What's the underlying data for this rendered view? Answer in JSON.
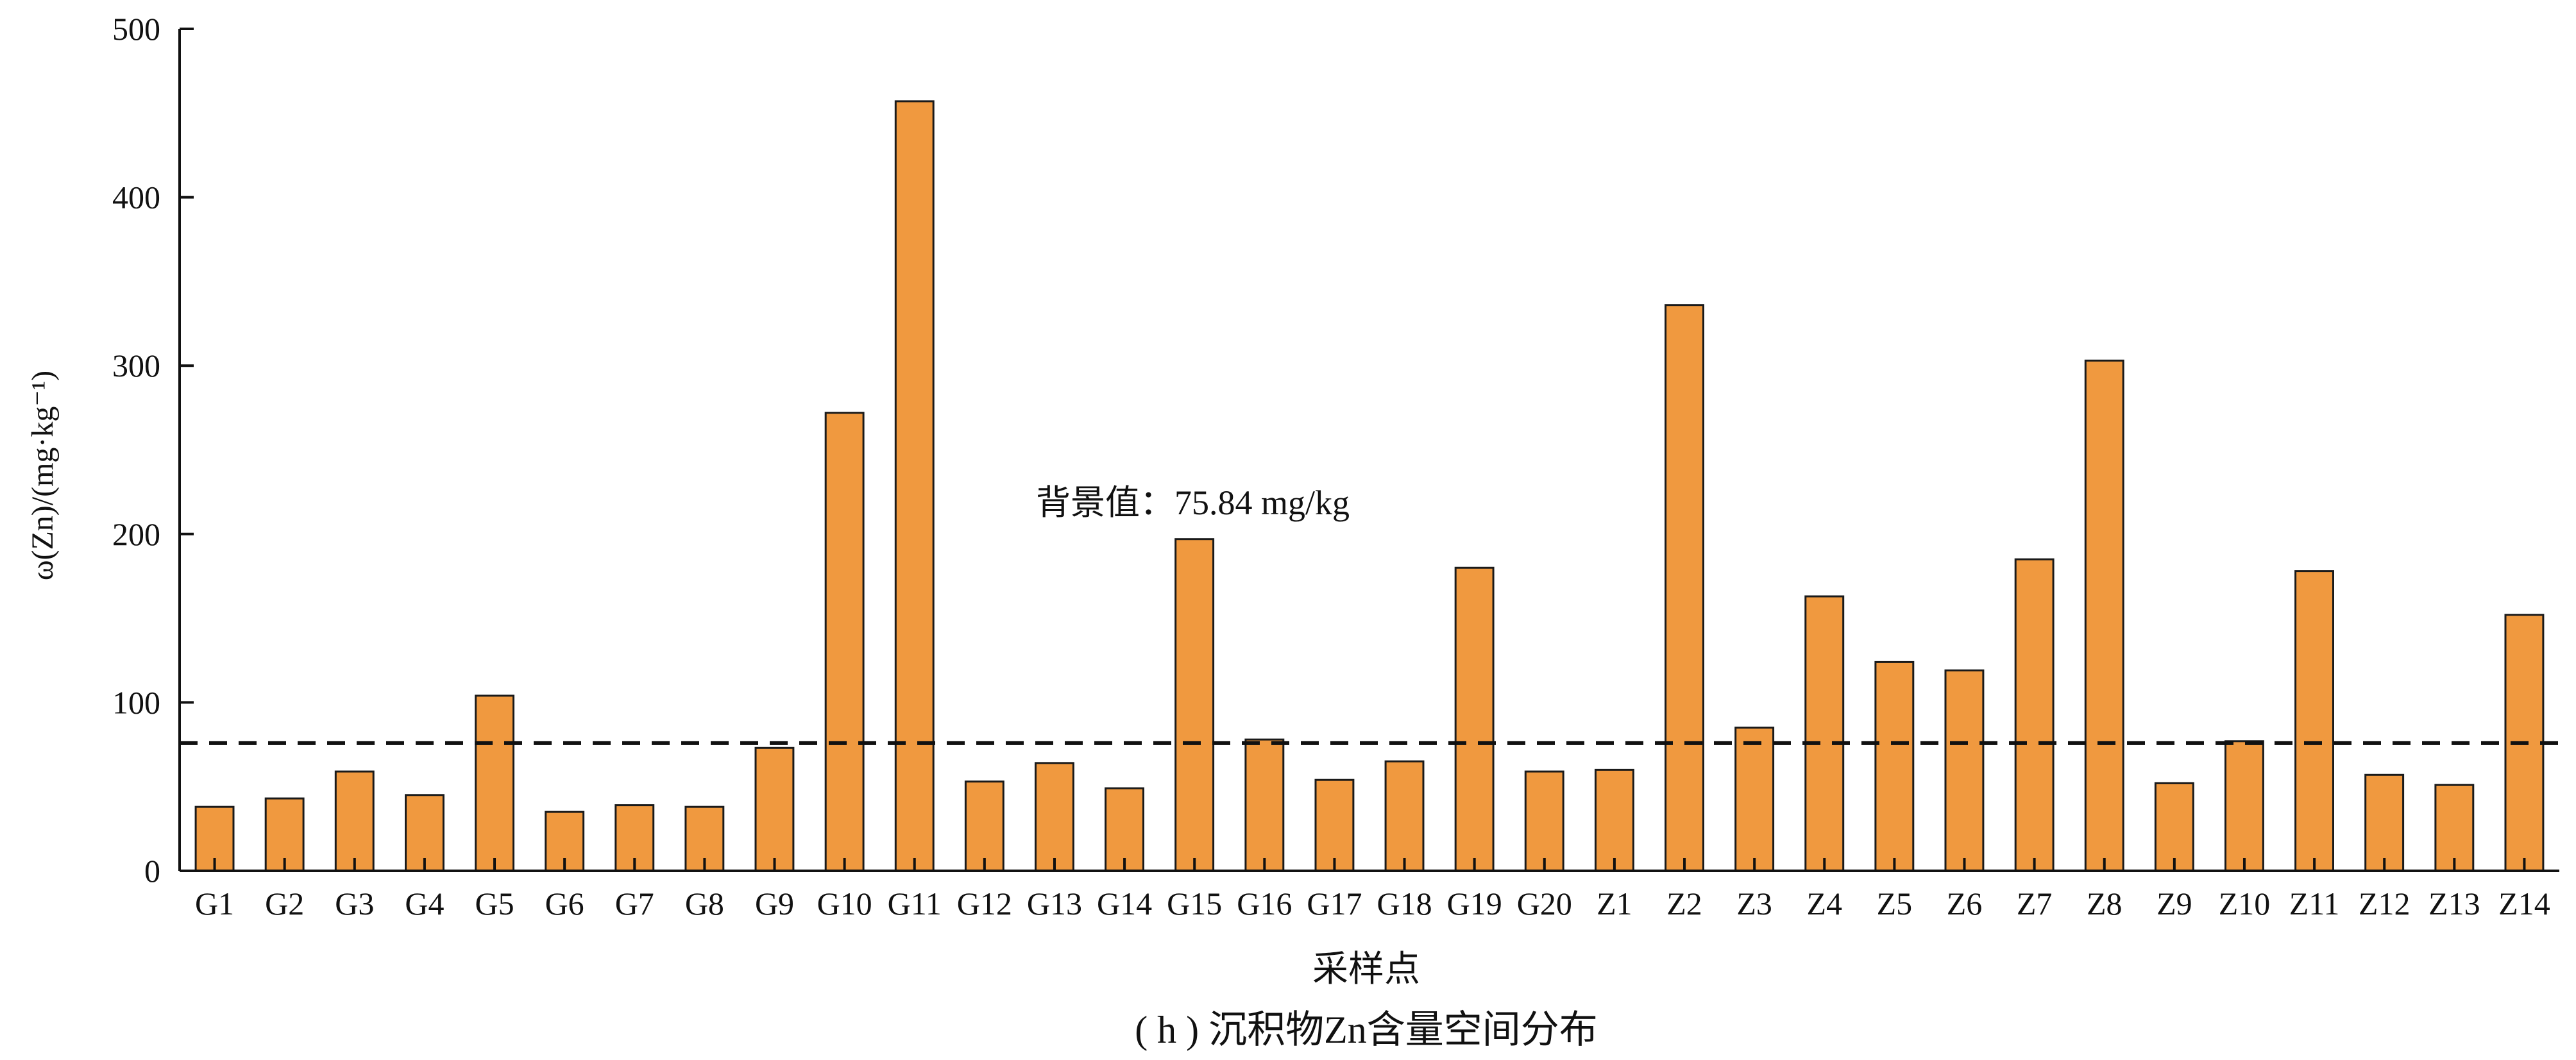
{
  "chart_data": {
    "type": "bar",
    "categories": [
      "G1",
      "G2",
      "G3",
      "G4",
      "G5",
      "G6",
      "G7",
      "G8",
      "G9",
      "G10",
      "G11",
      "G12",
      "G13",
      "G14",
      "G15",
      "G16",
      "G17",
      "G18",
      "G19",
      "G20",
      "Z1",
      "Z2",
      "Z3",
      "Z4",
      "Z5",
      "Z6",
      "Z7",
      "Z8",
      "Z9",
      "Z10",
      "Z11",
      "Z12",
      "Z13",
      "Z14"
    ],
    "values": [
      38,
      43,
      59,
      45,
      104,
      35,
      39,
      38,
      73,
      272,
      457,
      53,
      64,
      49,
      197,
      78,
      54,
      65,
      180,
      59,
      60,
      336,
      85,
      163,
      124,
      119,
      185,
      303,
      52,
      77,
      178,
      57,
      51,
      152
    ],
    "ylabel": "ω(Zn)/(mg·kg⁻¹)",
    "xlabel": "采样点",
    "caption": "( h ) 沉积物Zn含量空间分布",
    "ylim": [
      0,
      500
    ],
    "yticks": [
      0,
      100,
      200,
      300,
      400,
      500
    ],
    "reference_line": {
      "value": 75.84,
      "label": "背景值：75.84 mg/kg",
      "style": "dashed"
    },
    "bar_color": "#F0993F",
    "bar_edge_color": "#1a1a1a",
    "grid": false
  }
}
